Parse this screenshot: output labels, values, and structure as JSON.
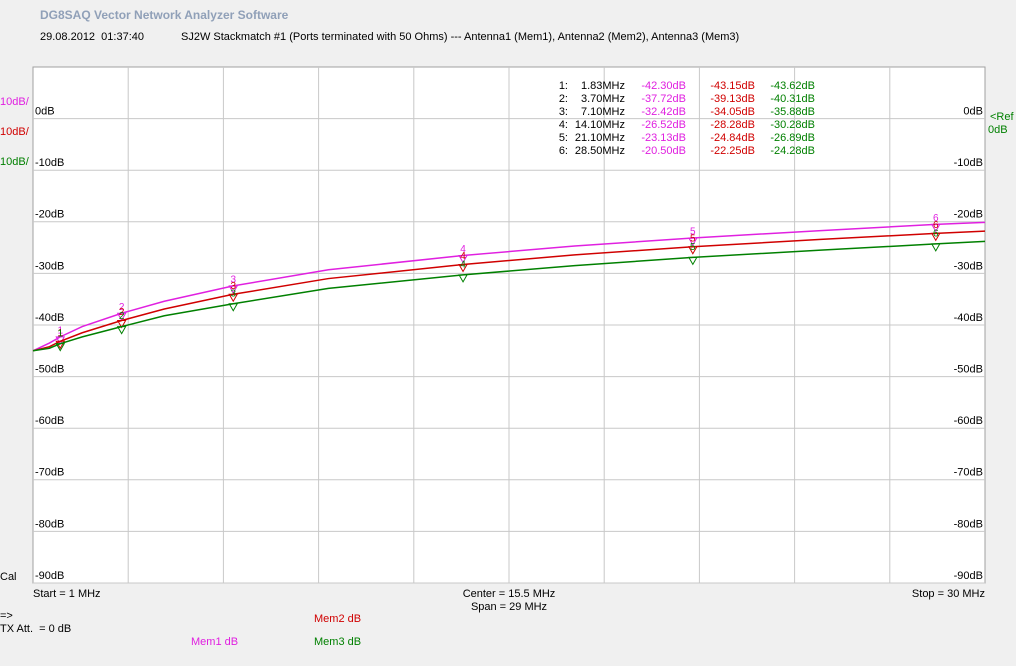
{
  "chart_data": {
    "type": "line",
    "title": "DG8SAQ Vector Network Analyzer Software",
    "timestamp": "29.08.2012  01:37:40",
    "subtitle": "SJ2W Stackmatch #1 (Ports terminated with 50 Ohms) --- Antenna1 (Mem1), Antenna2 (Mem2), Antenna3 (Mem3)",
    "start_label": "Start = 1 MHz",
    "center_label": "Center = 15.5 MHz",
    "span_label": "Span = 29 MHz",
    "stop_label": "Stop = 30 MHz",
    "cal_label": "Cal",
    "arrow_label": "=>",
    "tx_att_label": "TX Att.  = 0 dB",
    "ref_label": "<Ref",
    "ref_value_label": "0dB",
    "xlim": [
      1,
      30
    ],
    "ylim": [
      -90,
      10
    ],
    "yticks": [
      {
        "value": 0,
        "label": "0dB"
      },
      {
        "value": -10,
        "label": "-10dB"
      },
      {
        "value": -20,
        "label": "-20dB"
      },
      {
        "value": -30,
        "label": "-30dB"
      },
      {
        "value": -40,
        "label": "-40dB"
      },
      {
        "value": -50,
        "label": "-50dB"
      },
      {
        "value": -60,
        "label": "-60dB"
      },
      {
        "value": -70,
        "label": "-70dB"
      },
      {
        "value": -80,
        "label": "-80dB"
      },
      {
        "value": -90,
        "label": "-90dB"
      }
    ],
    "grid": true,
    "x": [
      1,
      1.5,
      1.83,
      2.5,
      3.7,
      5,
      7.1,
      10,
      14.1,
      17.5,
      21.1,
      25,
      28.5,
      30
    ],
    "series": [
      {
        "name": "Mem1 dB",
        "color": "#e020e0",
        "scale": "10dB/",
        "values": [
          -45,
          -43.5,
          -42.3,
          -40.3,
          -37.72,
          -35.4,
          -32.42,
          -29.3,
          -26.52,
          -24.7,
          -23.13,
          -21.7,
          -20.5,
          -20.1
        ]
      },
      {
        "name": "Mem2 dB",
        "color": "#d00000",
        "scale": "10dB/",
        "values": [
          -45,
          -44.2,
          -43.15,
          -41.5,
          -39.13,
          -36.9,
          -34.05,
          -31.0,
          -28.28,
          -26.4,
          -24.84,
          -23.4,
          -22.25,
          -21.8
        ]
      },
      {
        "name": "Mem3 dB",
        "color": "#008000",
        "scale": "10dB/",
        "values": [
          -45,
          -44.5,
          -43.62,
          -42.3,
          -40.31,
          -38.2,
          -35.88,
          -32.9,
          -30.28,
          -28.5,
          -26.89,
          -25.5,
          -24.28,
          -23.8
        ]
      }
    ],
    "markers_x": [
      1.83,
      3.7,
      7.1,
      14.1,
      21.1,
      28.5
    ],
    "marker_names": [
      "1",
      "2",
      "3",
      "4",
      "5",
      "6"
    ],
    "marker_table": {
      "rows": [
        [
          "1:",
          "1.83MHz",
          "-42.30dB",
          "-43.15dB",
          "-43.62dB"
        ],
        [
          "2:",
          "3.70MHz",
          "-37.72dB",
          "-39.13dB",
          "-40.31dB"
        ],
        [
          "3:",
          "7.10MHz",
          "-32.42dB",
          "-34.05dB",
          "-35.88dB"
        ],
        [
          "4:",
          "14.10MHz",
          "-26.52dB",
          "-28.28dB",
          "-30.28dB"
        ],
        [
          "5:",
          "21.10MHz",
          "-23.13dB",
          "-24.84dB",
          "-26.89dB"
        ],
        [
          "6:",
          "28.50MHz",
          "-20.50dB",
          "-22.25dB",
          "-24.28dB"
        ]
      ]
    }
  }
}
